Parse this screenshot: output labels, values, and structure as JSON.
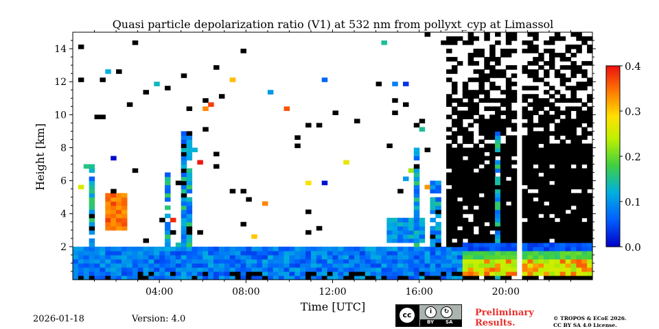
{
  "chart_data": {
    "type": "heatmap",
    "title": "Quasi particle depolarization ratio (V1) at 532 nm from pollyxt_cyp at Limassol",
    "xlabel": "Time [UTC]",
    "ylabel": "Height [km]",
    "xlim_hours": [
      0,
      24
    ],
    "ylim_km": [
      0,
      15
    ],
    "x_ticks": [
      {
        "value": 4,
        "label": "04:00"
      },
      {
        "value": 8,
        "label": "08:00"
      },
      {
        "value": 12,
        "label": "12:00"
      },
      {
        "value": 16,
        "label": "16:00"
      },
      {
        "value": 20,
        "label": "20:00"
      }
    ],
    "y_ticks": [
      {
        "value": 2,
        "label": "2"
      },
      {
        "value": 4,
        "label": "4"
      },
      {
        "value": 6,
        "label": "6"
      },
      {
        "value": 8,
        "label": "8"
      },
      {
        "value": 10,
        "label": "10"
      },
      {
        "value": 12,
        "label": "12"
      },
      {
        "value": 14,
        "label": "14"
      }
    ],
    "colorbar": {
      "range": [
        0.0,
        0.4
      ],
      "ticks": [
        {
          "value": 0.0,
          "label": "0.0"
        },
        {
          "value": 0.1,
          "label": "0.1"
        },
        {
          "value": 0.2,
          "label": "0.2"
        },
        {
          "value": 0.3,
          "label": "0.3"
        },
        {
          "value": 0.4,
          "label": "0.4"
        }
      ],
      "colormap": "jet"
    },
    "features": [
      {
        "name": "surface aerosol layer",
        "t_start": 0,
        "t_end": 24,
        "top_km": 2.0,
        "value": 0.08
      },
      {
        "name": "dust layer",
        "t_start": 1.6,
        "t_end": 2.4,
        "bottom_km": 3.0,
        "top_km": 5.2,
        "value": 0.38
      },
      {
        "name": "elevated layer",
        "t_start": 14.5,
        "t_end": 16.2,
        "bottom_km": 2.2,
        "top_km": 3.7,
        "value": 0.06
      },
      {
        "name": "residual layer",
        "t_start": 18,
        "t_end": 24,
        "bottom_km": 0.2,
        "top_km": 2.2,
        "value": 0.22
      }
    ],
    "noise_region": {
      "t_start": 17.3,
      "t_end": 24,
      "value": "black"
    },
    "data_gap": {
      "t_start": 20.6,
      "t_end": 20.85
    }
  },
  "footer": {
    "date": "2026-01-18",
    "version": "Version: 4.0",
    "preliminary_line1": "Preliminary",
    "preliminary_line2": "Results.",
    "copyright_line1": "© TROPOS & ECoE 2026.",
    "copyright_line2": "CC BY SA 4.0 License.",
    "license_badge": {
      "cc": "cc",
      "by": "BY",
      "sa": "SA"
    }
  }
}
